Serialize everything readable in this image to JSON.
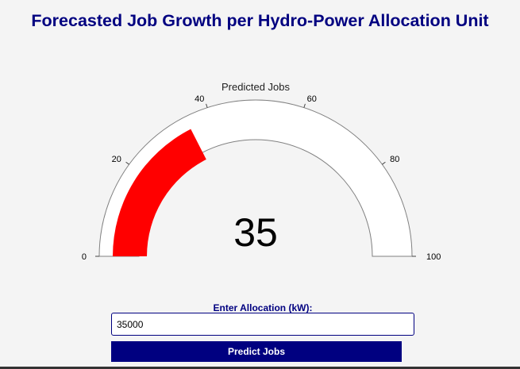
{
  "header": {
    "title": "Forecasted Job Growth per Hydro-Power Allocation Unit"
  },
  "gauge": {
    "title": "Predicted Jobs",
    "value": 35,
    "value_label": "35",
    "min": 0,
    "max": 100,
    "tick_labels": [
      "0",
      "20",
      "40",
      "60",
      "80",
      "100"
    ],
    "tick_values": [
      0,
      20,
      40,
      60,
      80,
      100
    ],
    "bar_color": "#ff0000",
    "track_fill": "#ffffff",
    "track_border": "#808080"
  },
  "form": {
    "allocation_label": "Enter Allocation (kW):",
    "allocation_value": "35000",
    "predict_button_label": "Predict Jobs"
  },
  "colors": {
    "accent": "#000080",
    "background": "#f4f4f4"
  }
}
